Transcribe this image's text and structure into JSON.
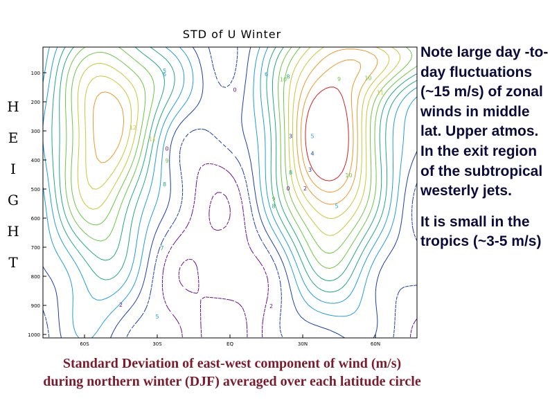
{
  "side_label": [
    "H",
    "E",
    "I",
    "G",
    "H",
    "T"
  ],
  "chart_data": {
    "type": "contour",
    "title": "STD of U Winter",
    "xlabel": "",
    "ylabel": "",
    "x_ticks": [
      "60S",
      "30S",
      "EQ",
      "30N",
      "60N"
    ],
    "x_tick_values": [
      -60,
      -30,
      0,
      30,
      60
    ],
    "y_ticks": [
      "100",
      "200",
      "300",
      "400",
      "500",
      "600",
      "700",
      "800",
      "900",
      "1000"
    ],
    "y_tick_values": [
      100,
      200,
      300,
      400,
      500,
      600,
      700,
      800,
      900,
      1000
    ],
    "xlim": [
      -90,
      90
    ],
    "ylim": [
      1000,
      20
    ],
    "contour_interval": 1,
    "maxima": [
      {
        "name": "southern-hemisphere-max",
        "lat": -40,
        "pressure": 300,
        "value": 12
      },
      {
        "name": "northern-hemisphere-max",
        "lat": 35,
        "pressure": 300,
        "value": 15
      }
    ],
    "contour_labels": [
      {
        "lat": -27,
        "p": 100,
        "text": "5"
      },
      {
        "lat": -27,
        "p": 112,
        "text": "6"
      },
      {
        "lat": 15,
        "p": 112,
        "text": "6"
      },
      {
        "lat": 24,
        "p": 120,
        "text": "8"
      },
      {
        "lat": 45,
        "p": 128,
        "text": "9"
      },
      {
        "lat": 57,
        "p": 125,
        "text": "10"
      },
      {
        "lat": 62,
        "p": 175,
        "text": "11"
      },
      {
        "lat": 22,
        "p": 130,
        "text": "10"
      },
      {
        "lat": 2,
        "p": 165,
        "text": "0"
      },
      {
        "lat": -40,
        "p": 295,
        "text": "12"
      },
      {
        "lat": -32,
        "p": 335,
        "text": "11"
      },
      {
        "lat": -26,
        "p": 368,
        "text": "0"
      },
      {
        "lat": -26,
        "p": 410,
        "text": "9"
      },
      {
        "lat": -27,
        "p": 490,
        "text": "8"
      },
      {
        "lat": -28,
        "p": 710,
        "text": "7"
      },
      {
        "lat": 34,
        "p": 325,
        "text": "5"
      },
      {
        "lat": 34,
        "p": 385,
        "text": "4"
      },
      {
        "lat": 33,
        "p": 440,
        "text": "3"
      },
      {
        "lat": 31,
        "p": 505,
        "text": "2"
      },
      {
        "lat": 25,
        "p": 450,
        "text": "8"
      },
      {
        "lat": 24,
        "p": 505,
        "text": "0"
      },
      {
        "lat": 18,
        "p": 540,
        "text": "9"
      },
      {
        "lat": 18,
        "p": 565,
        "text": "8"
      },
      {
        "lat": 49,
        "p": 460,
        "text": "10"
      },
      {
        "lat": 44,
        "p": 565,
        "text": "5"
      },
      {
        "lat": 25,
        "p": 325,
        "text": "3"
      },
      {
        "lat": -45,
        "p": 905,
        "text": "2"
      },
      {
        "lat": 17,
        "p": 910,
        "text": "2"
      },
      {
        "lat": -30,
        "p": 945,
        "text": "5"
      }
    ],
    "colors": [
      "#6a0d91",
      "#1b3fa8",
      "#1e9ed8",
      "#1faa7a",
      "#6cc644",
      "#c8c838",
      "#e89a2a",
      "#d22020"
    ]
  },
  "notes": [
    "Note large day -to-day fluctuations (~15 m/s) of zonal winds in middle lat. Upper atmos. In the exit region of the subtropical westerly jets.",
    "It is small in the tropics (~3-5 m/s)"
  ],
  "caption": [
    "Standard Deviation of east-west component of wind (m/s)",
    "during northern winter (DJF) averaged over each latitude circle"
  ]
}
